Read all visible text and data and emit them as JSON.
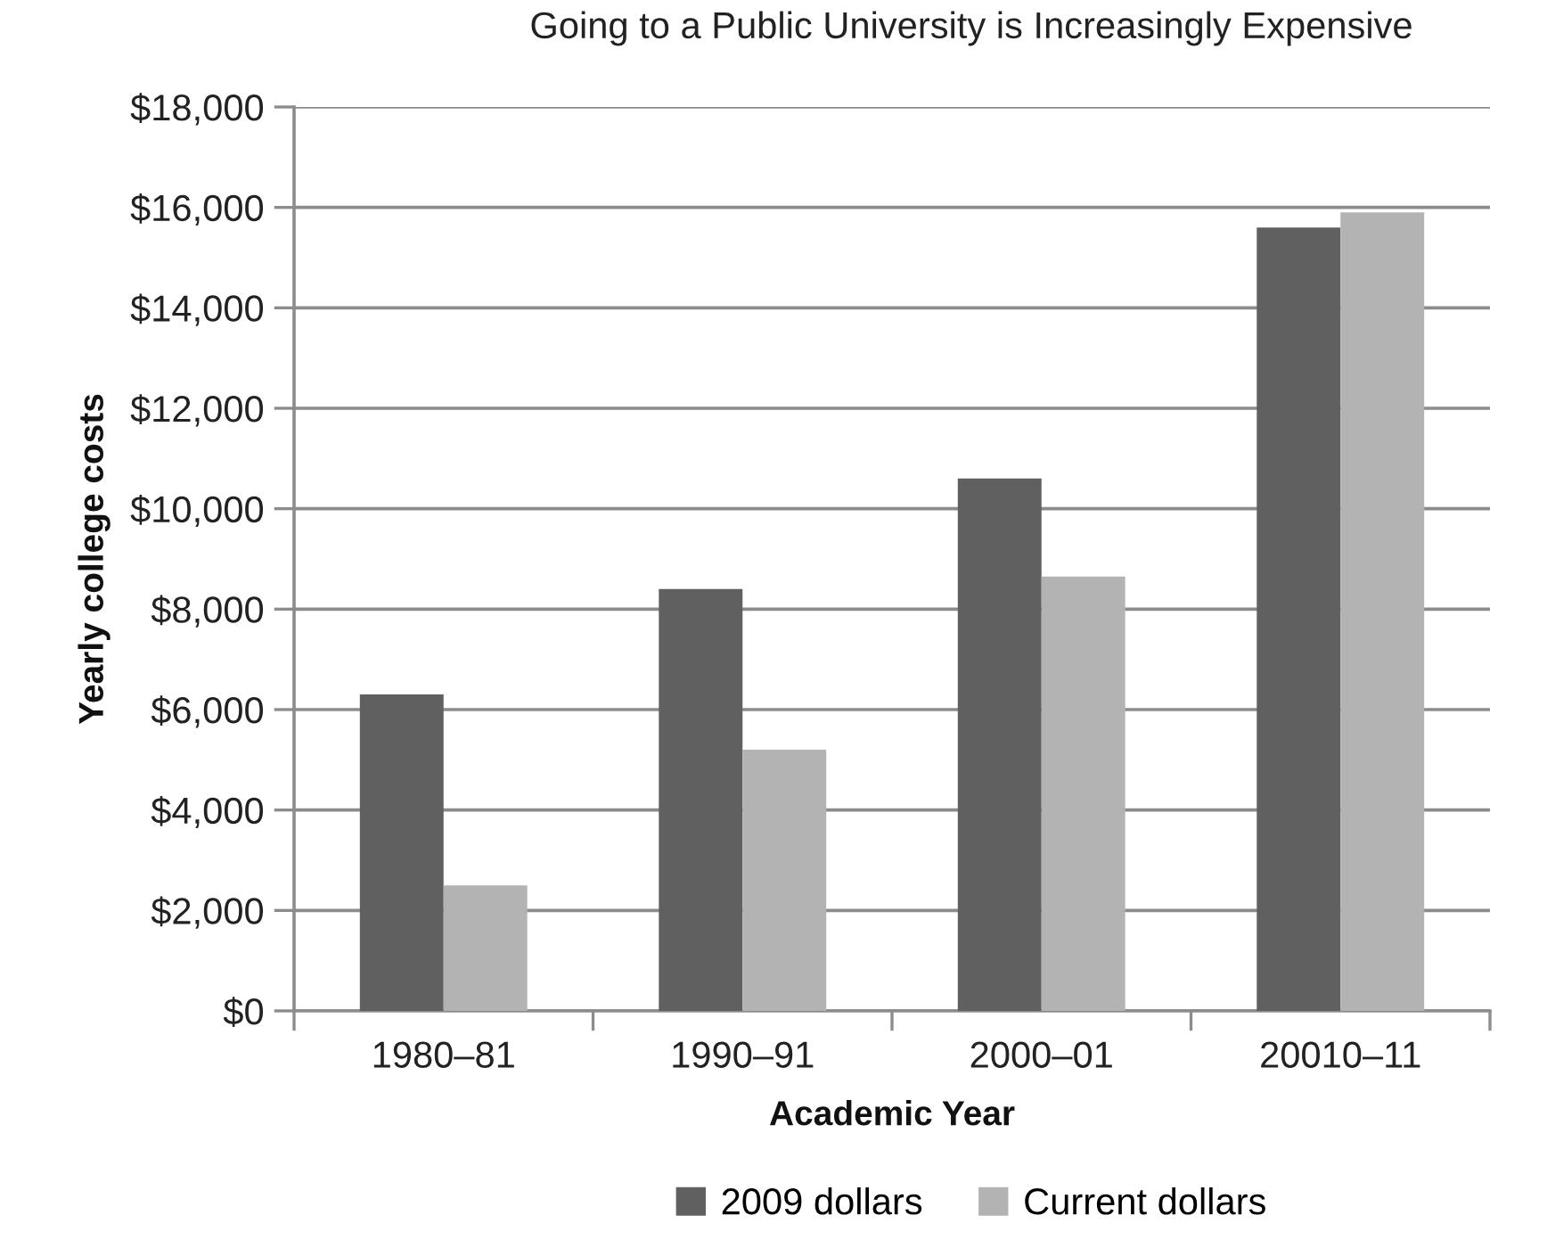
{
  "chart_data": {
    "type": "bar",
    "title": "Going to a Public University is Increasingly Expensive",
    "xlabel": "Academic Year",
    "ylabel": "Yearly college costs",
    "categories": [
      "1980–81",
      "1990–91",
      "2000–01",
      "20010–11"
    ],
    "series": [
      {
        "name": "2009 dollars",
        "color": "#606060",
        "values": [
          6300,
          8400,
          10600,
          15600
        ]
      },
      {
        "name": "Current dollars",
        "color": "#b3b3b3",
        "values": [
          2500,
          5200,
          8650,
          15900
        ]
      }
    ],
    "ylim": [
      0,
      18000
    ],
    "yticks": [
      {
        "value": 0,
        "label": "$0"
      },
      {
        "value": 2000,
        "label": "$2,000"
      },
      {
        "value": 4000,
        "label": "$4,000"
      },
      {
        "value": 6000,
        "label": "$6,000"
      },
      {
        "value": 8000,
        "label": "$8,000"
      },
      {
        "value": 10000,
        "label": "$10,000"
      },
      {
        "value": 12000,
        "label": "$12,000"
      },
      {
        "value": 14000,
        "label": "$14,000"
      },
      {
        "value": 16000,
        "label": "$16,000"
      },
      {
        "value": 18000,
        "label": "$18,000"
      }
    ],
    "grid": "y",
    "legend": "bottom"
  }
}
